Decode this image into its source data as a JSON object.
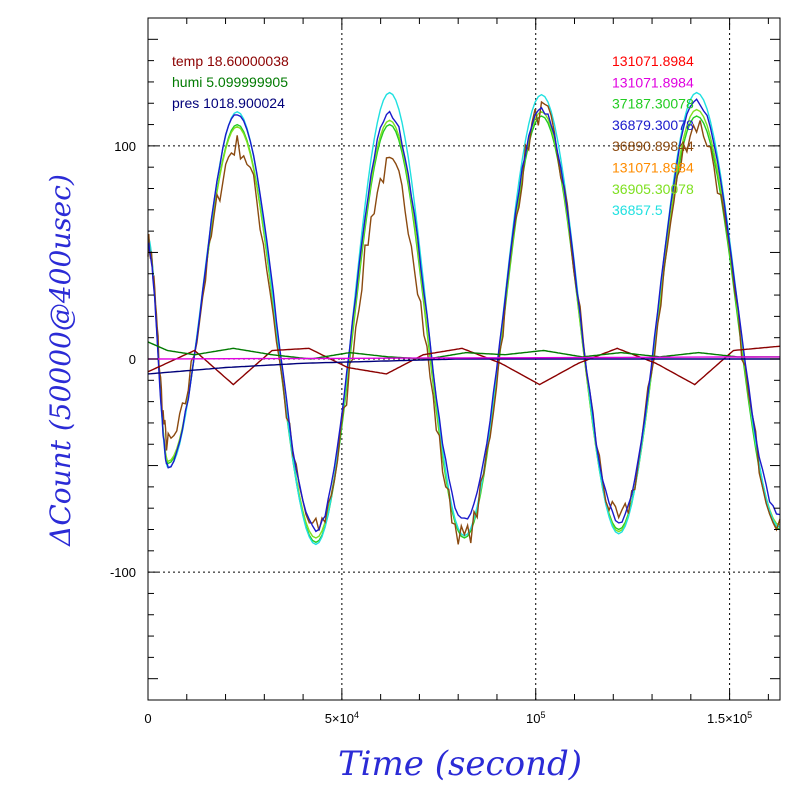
{
  "chart_data": {
    "type": "line",
    "xlabel": "Time (second)",
    "ylabel": "ΔCount (50000@400usec)",
    "xlim": [
      0,
      163000
    ],
    "ylim": [
      -160,
      160
    ],
    "x_ticks": [
      {
        "value": 0,
        "label": "0",
        "sup": ""
      },
      {
        "value": 50000,
        "label": "5×10",
        "sup": "4"
      },
      {
        "value": 100000,
        "label": "10",
        "sup": "5"
      },
      {
        "value": 150000,
        "label": "1.5×10",
        "sup": "5"
      }
    ],
    "y_ticks": [
      {
        "value": 100,
        "label": "100"
      },
      {
        "value": 0,
        "label": "0"
      },
      {
        "value": -100,
        "label": "-100"
      }
    ],
    "grid": true,
    "legend_left": [
      {
        "text": "temp 18.60000038",
        "color": "#8b0000"
      },
      {
        "text": "humi 5.099999905",
        "color": "#007a00"
      },
      {
        "text": "pres 1018.900024",
        "color": "#00007a"
      }
    ],
    "legend_right": [
      {
        "text": "131071.8984",
        "color": "#ff0000"
      },
      {
        "text": "131071.8984",
        "color": "#e000e0"
      },
      {
        "text": "37187.30078",
        "color": "#22cc22"
      },
      {
        "text": "36879.30078",
        "color": "#1a1acc"
      },
      {
        "text": "36890.89844",
        "color": "#8b4a10"
      },
      {
        "text": "131071.8984",
        "color": "#ff8c00"
      },
      {
        "text": "36905.30078",
        "color": "#7ee020"
      },
      {
        "text": "36857.5",
        "color": "#20e0e0"
      }
    ],
    "series": [
      {
        "color": "#22cc22",
        "amplitude": 98,
        "offset": 15,
        "noise": 0,
        "x": [
          0,
          5200,
          23000,
          43300,
          62300,
          81600,
          101500,
          121400,
          141500,
          163000
        ],
        "y": [
          56,
          -49,
          110,
          -86,
          110,
          -84,
          114,
          -80,
          114,
          -80
        ]
      },
      {
        "color": "#7ee020",
        "amplitude": 98,
        "offset": 15,
        "noise": 0,
        "x": [
          0,
          5200,
          23000,
          43300,
          62300,
          81600,
          101500,
          121400,
          141500,
          163000
        ],
        "y": [
          55,
          -48,
          109,
          -84,
          112,
          -83,
          116,
          -81,
          117,
          -78
        ]
      },
      {
        "color": "#20e0e0",
        "amplitude": 98,
        "offset": 15,
        "noise": 0,
        "x": [
          0,
          5200,
          23000,
          43300,
          62300,
          81600,
          101500,
          121400,
          141500,
          163000
        ],
        "y": [
          57,
          -51,
          116,
          -87,
          125,
          -83,
          124,
          -82,
          125,
          -79
        ]
      },
      {
        "color": "#8b4a10",
        "amplitude": 98,
        "offset": 15,
        "noise": 6,
        "x": [
          0,
          5200,
          23000,
          43300,
          62300,
          81600,
          101500,
          121400,
          141500,
          163000
        ],
        "y": [
          54,
          -40,
          100,
          -80,
          90,
          -84,
          116,
          -76,
          110,
          -75
        ]
      },
      {
        "color": "#1a1acc",
        "amplitude": 98,
        "offset": 15,
        "noise": 1.5,
        "x": [
          0,
          5200,
          23000,
          43300,
          62300,
          81600,
          101500,
          121400,
          141500,
          163000
        ],
        "y": [
          53,
          -50,
          115,
          -80,
          115,
          -76,
          117,
          -76,
          121,
          -73
        ]
      },
      {
        "color": "#8b0000",
        "amplitude": 0,
        "offset": 0,
        "noise": 0,
        "x": [
          0,
          12000,
          22000,
          32000,
          41500,
          51500,
          61500,
          71000,
          81000,
          91000,
          101000,
          111000,
          121000,
          131000,
          141000,
          151000,
          163000
        ],
        "y": [
          -6,
          4,
          -12,
          4,
          5,
          -4,
          -7,
          2,
          5,
          -2,
          -12,
          -2,
          5,
          -2,
          -12,
          4,
          6
        ]
      },
      {
        "color": "#007a00",
        "amplitude": 0,
        "offset": 0,
        "noise": 0,
        "x": [
          0,
          5000,
          12000,
          22000,
          32000,
          42000,
          52000,
          62000,
          72000,
          82000,
          92000,
          102000,
          112000,
          122000,
          132000,
          142000,
          152000,
          163000
        ],
        "y": [
          8,
          4,
          2,
          5,
          2,
          0,
          3,
          1,
          0,
          3,
          2,
          4,
          1,
          3,
          1,
          3,
          1,
          1
        ]
      },
      {
        "color": "#00007a",
        "amplitude": 0,
        "offset": 0,
        "noise": 0,
        "x": [
          0,
          20000,
          40000,
          60000,
          80000,
          100000,
          120000,
          140000,
          163000
        ],
        "y": [
          -7,
          -4,
          -2,
          -1,
          0,
          0,
          0,
          0,
          0
        ]
      },
      {
        "color": "#e000e0",
        "amplitude": 0,
        "offset": 0,
        "noise": 0,
        "x": [
          0,
          163000
        ],
        "y": [
          0,
          1
        ]
      }
    ]
  }
}
